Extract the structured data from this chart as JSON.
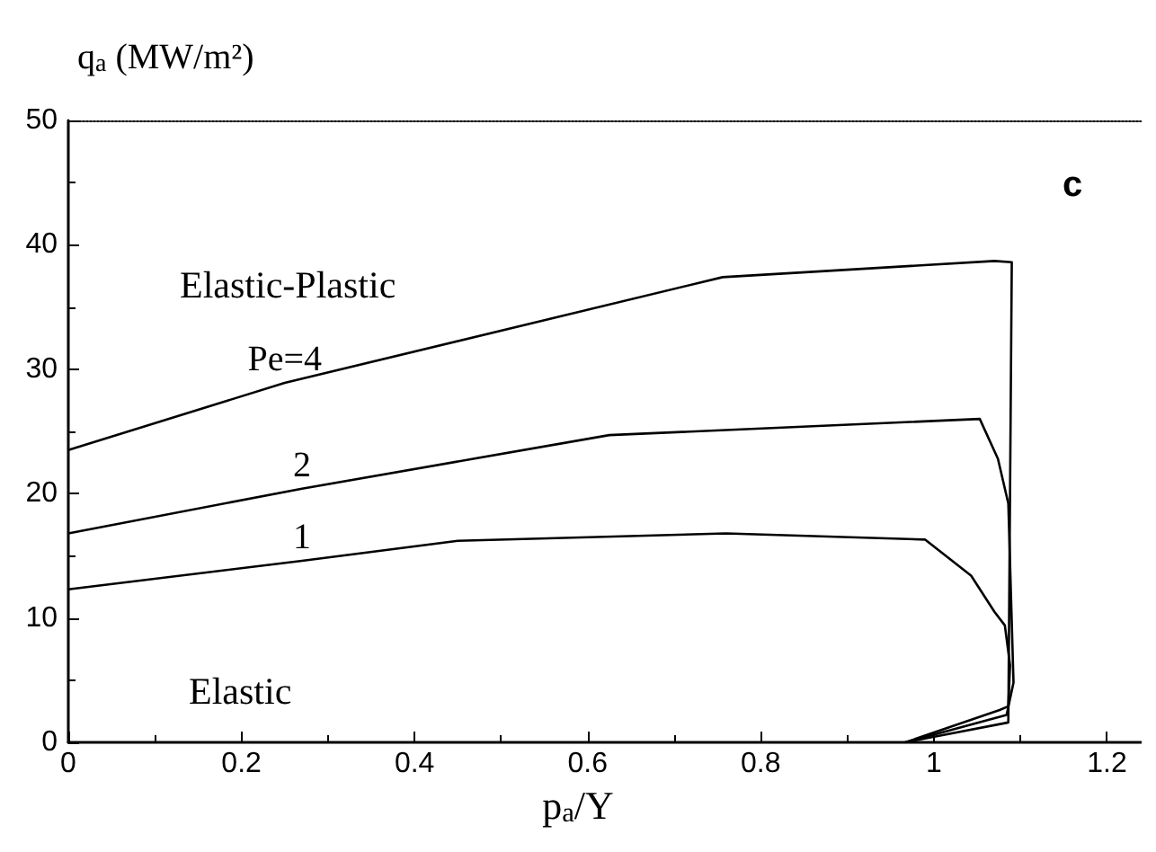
{
  "chart_data": {
    "type": "line",
    "xlabel": "p$_{a}$/Y",
    "ylabel": "q$_{a}$ (MW/m²)",
    "annotations": [
      "Elastic-Plastic",
      "Elastic",
      "c"
    ],
    "xlim": [
      0,
      1.24
    ],
    "xticks": [
      0,
      0.2,
      0.4,
      0.6,
      0.8,
      1,
      1.2
    ],
    "ylim": [
      0,
      50
    ],
    "yticks": [
      0,
      10,
      20,
      30,
      40,
      50
    ],
    "grid": false,
    "legend": false,
    "marker": "none",
    "line_style": "solid",
    "series": [
      {
        "name": "Pe=4",
        "color": "#000000",
        "x": [
          0,
          0.25,
          0.756,
          1.07,
          1.09,
          1.086,
          0.967
        ],
        "values": [
          23.5,
          28.9,
          37.4,
          38.7,
          38.6,
          1.6,
          0
        ]
      },
      {
        "name": "2",
        "color": "#000000",
        "x": [
          0,
          0.27,
          0.625,
          1.053,
          1.074,
          1.086,
          1.092,
          1.084,
          0.967
        ],
        "values": [
          16.8,
          20.4,
          24.7,
          26.0,
          22.8,
          19.2,
          4.8,
          2.2,
          0
        ]
      },
      {
        "name": "1",
        "color": "#000000",
        "x": [
          0,
          0.27,
          0.45,
          0.76,
          0.99,
          1.043,
          1.07,
          1.082,
          1.088,
          1.086,
          1.076,
          0.967
        ],
        "values": [
          12.3,
          14.6,
          16.2,
          16.8,
          16.3,
          13.4,
          10.5,
          9.4,
          6.2,
          2.9,
          2.6,
          0
        ]
      }
    ]
  }
}
